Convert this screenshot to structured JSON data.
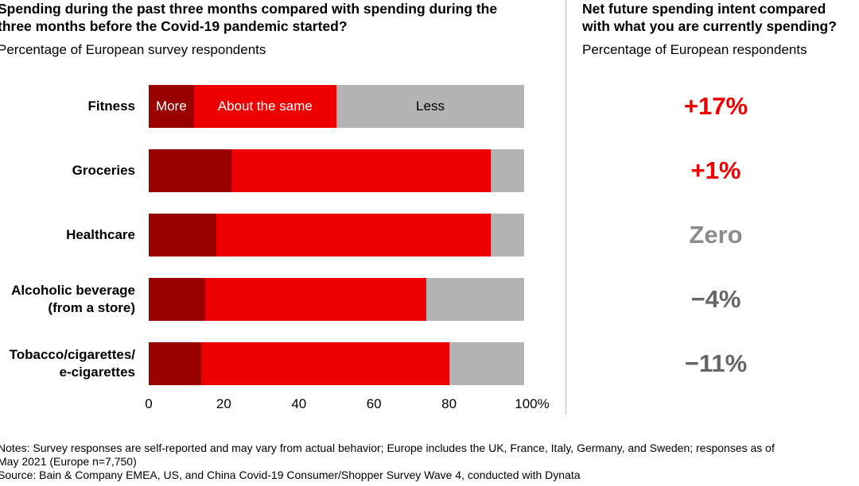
{
  "left_panel": {
    "title_line1": "Spending during the past three months compared with spending during the",
    "title_line2": "three months before the Covid-19 pandemic started?",
    "subtitle": "Percentage of European survey respondents"
  },
  "right_panel": {
    "title_line1": "Net future spending intent compared",
    "title_line2": "with what you are currently spending?",
    "subtitle": "Percentage of European respondents",
    "values": [
      {
        "text": "+17%",
        "color": "#ee0000"
      },
      {
        "text": "+1%",
        "color": "#ee0000"
      },
      {
        "text": "Zero",
        "color": "#8c8c8c"
      },
      {
        "text": "−4%",
        "color": "#666666"
      },
      {
        "text": "−11%",
        "color": "#666666"
      }
    ]
  },
  "chart_data": {
    "type": "bar",
    "orientation": "horizontal-stacked",
    "categories": [
      [
        "Fitness"
      ],
      [
        "Groceries"
      ],
      [
        "Healthcare"
      ],
      [
        "Alcoholic beverage",
        "(from a store)"
      ],
      [
        "Tobacco/cigarettes/",
        "e-cigarettes"
      ]
    ],
    "series": [
      {
        "name": "More",
        "color": "#990000",
        "values": [
          12,
          22,
          18,
          15,
          14
        ]
      },
      {
        "name": "About the same",
        "color": "#ee0000",
        "values": [
          38,
          69,
          73,
          59,
          66
        ]
      },
      {
        "name": "Less",
        "color": "#b3b3b3",
        "label_color": "#000000",
        "values": [
          50,
          9,
          9,
          26,
          20
        ]
      }
    ],
    "xlim": [
      0,
      100
    ],
    "x_ticks": [
      "0",
      "20",
      "40",
      "60",
      "80",
      "100%"
    ],
    "legend": "inline in first bar"
  },
  "notes": {
    "line1": "Notes: Survey responses are self-reported and may vary from actual behavior; Europe includes the UK, France, Italy, Germany, and Sweden; responses as of",
    "line2": "May 2021 (Europe n=7,750)",
    "line3": "Source: Bain & Company EMEA, US, and China Covid-19 Consumer/Shopper Survey Wave 4, conducted with Dynata"
  }
}
